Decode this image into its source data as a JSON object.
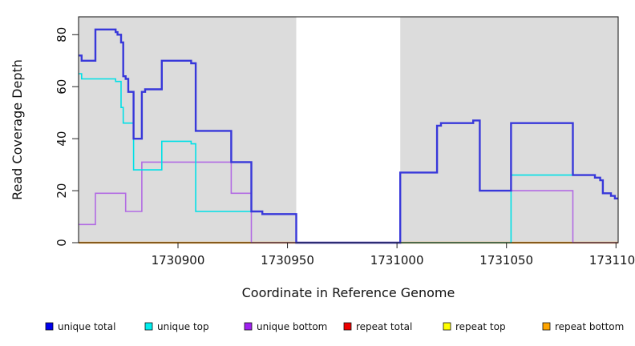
{
  "chart_data": {
    "type": "line",
    "subtype": "step-coverage",
    "title": "",
    "xlabel": "Coordinate in Reference Genome",
    "ylabel": "Read Coverage Depth",
    "xlim": [
      1730854.6,
      1731101
    ],
    "ylim": [
      0,
      87
    ],
    "x_ticks": [
      1730900,
      1730950,
      1731000,
      1731050,
      1731100
    ],
    "y_ticks": [
      0,
      20,
      40,
      60,
      80
    ],
    "grid": false,
    "plot_background": "#ffffff",
    "shaded_band_color": "#dcdcdc",
    "shaded_regions": [
      [
        1730854.6,
        1730954.0
      ],
      [
        1731001.5,
        1731101.0
      ]
    ],
    "gap_region": [
      1730954.0,
      1731001.5
    ],
    "legend_position": "bottom",
    "box_color": "#222222",
    "series": [
      {
        "name": "unique total",
        "legend_color": "#0000ee",
        "line_color": "#3838da",
        "line_width": 2.4,
        "z": 5,
        "steps": [
          [
            1730854.6,
            72
          ],
          [
            1730856,
            70
          ],
          [
            1730862.3,
            82
          ],
          [
            1730871.5,
            81
          ],
          [
            1730872.4,
            80
          ],
          [
            1730874,
            77
          ],
          [
            1730875,
            64
          ],
          [
            1730876.1,
            63
          ],
          [
            1730877.3,
            58
          ],
          [
            1730879.7,
            40
          ],
          [
            1730883.5,
            58
          ],
          [
            1730885,
            59
          ],
          [
            1730892.6,
            70
          ],
          [
            1730906,
            69
          ],
          [
            1730908.1,
            43
          ],
          [
            1730924.3,
            31
          ],
          [
            1730933.5,
            12
          ],
          [
            1730938.5,
            11
          ],
          [
            1730954,
            0
          ],
          [
            1731001.5,
            27
          ],
          [
            1731018.3,
            45
          ],
          [
            1731020.1,
            46
          ],
          [
            1731034.8,
            47
          ],
          [
            1731037.8,
            20
          ],
          [
            1731052.1,
            46
          ],
          [
            1731080.3,
            26
          ],
          [
            1731090.4,
            25
          ],
          [
            1731092.8,
            24
          ],
          [
            1731094,
            19
          ],
          [
            1731097.7,
            18
          ],
          [
            1731099.5,
            17
          ],
          [
            1731101,
            17
          ]
        ]
      },
      {
        "name": "unique top",
        "legend_color": "#00eeee",
        "line_color": "#00e0e6",
        "line_width": 1.6,
        "z": 4,
        "steps": [
          [
            1730854.6,
            65
          ],
          [
            1730856,
            63
          ],
          [
            1730871.5,
            62
          ],
          [
            1730874,
            52
          ],
          [
            1730875,
            46
          ],
          [
            1730879.7,
            28
          ],
          [
            1730892.6,
            39
          ],
          [
            1730906,
            38
          ],
          [
            1730908.1,
            12
          ],
          [
            1730938.5,
            11
          ],
          [
            1730954,
            0
          ],
          [
            1731052.1,
            26
          ],
          [
            1731090.4,
            25
          ],
          [
            1731092.8,
            24
          ],
          [
            1731094,
            19
          ],
          [
            1731097.7,
            18
          ],
          [
            1731099.5,
            17
          ],
          [
            1731101,
            17
          ]
        ]
      },
      {
        "name": "unique bottom",
        "legend_color": "#a020f0",
        "line_color": "#b26be3",
        "line_width": 1.6,
        "z": 3,
        "steps": [
          [
            1730854.6,
            7
          ],
          [
            1730862.3,
            19
          ],
          [
            1730876.1,
            12
          ],
          [
            1730883.5,
            31
          ],
          [
            1730924.3,
            19
          ],
          [
            1730933.5,
            0
          ],
          [
            1731001.5,
            27
          ],
          [
            1731018.3,
            45
          ],
          [
            1731020.1,
            46
          ],
          [
            1731034.8,
            47
          ],
          [
            1731037.8,
            20
          ],
          [
            1731080.3,
            0
          ],
          [
            1731101,
            0
          ]
        ]
      },
      {
        "name": "repeat total",
        "legend_color": "#ee0000",
        "line_color": "#dd2222",
        "line_width": 2,
        "z": 0,
        "steps": [
          [
            1730854.6,
            0
          ],
          [
            1731101,
            0
          ]
        ]
      },
      {
        "name": "repeat top",
        "legend_color": "#ffff00",
        "line_color": "#ffee00",
        "line_width": 2,
        "z": 1,
        "steps": [
          [
            1730854.6,
            0
          ],
          [
            1731101,
            0
          ]
        ]
      },
      {
        "name": "repeat bottom",
        "legend_color": "#ffa500",
        "line_color": "#ffa013",
        "line_width": 2.2,
        "z": 2,
        "steps": [
          [
            1730854.6,
            0
          ],
          [
            1731101,
            0
          ]
        ]
      }
    ]
  }
}
